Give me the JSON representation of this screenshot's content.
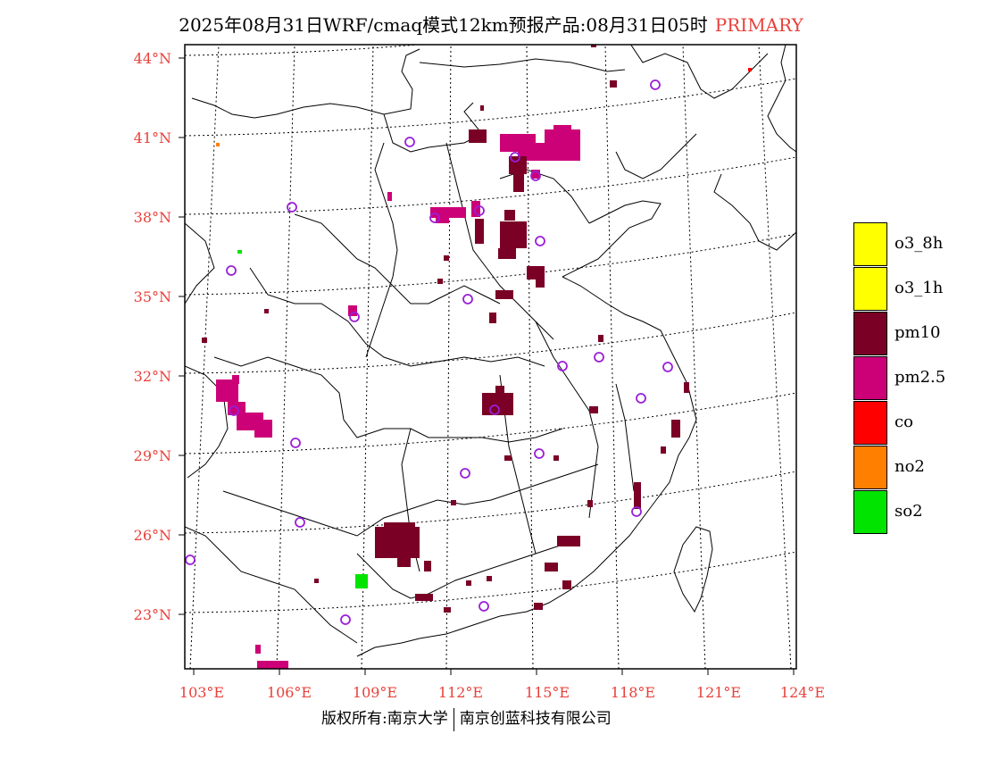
{
  "header": {
    "title": "2025年08月31日WRF/cmaq模式12km预报产品:08月31日05时",
    "primary_label": "PRIMARY"
  },
  "colors": {
    "pm10": "#7a0026",
    "pm25": "#cc0077",
    "co": "#ff0000",
    "no2": "#ff7f00",
    "so2": "#00e400",
    "o3": "#ffff00",
    "label_red": "#e8403a",
    "station_ring": "#9a1fd8"
  },
  "map": {
    "lat_labels": [
      "44°N",
      "41°N",
      "38°N",
      "35°N",
      "32°N",
      "29°N",
      "26°N",
      "23°N"
    ],
    "lon_labels": [
      "103°E",
      "106°E",
      "109°E",
      "112°E",
      "115°E",
      "118°E",
      "121°E",
      "124°E"
    ]
  },
  "legend": {
    "items": [
      {
        "label": "o3_8h",
        "color": "#ffff00"
      },
      {
        "label": "o3_1h",
        "color": "#ffff00"
      },
      {
        "label": "pm10",
        "color": "#7a0026"
      },
      {
        "label": "pm2.5",
        "color": "#cc0077"
      },
      {
        "label": "co",
        "color": "#ff0000"
      },
      {
        "label": "no2",
        "color": "#ff7f00"
      },
      {
        "label": "so2",
        "color": "#00e400"
      }
    ]
  },
  "footer": {
    "left": "版权所有:南京大学",
    "right": "南京创蓝科技有限公司"
  }
}
